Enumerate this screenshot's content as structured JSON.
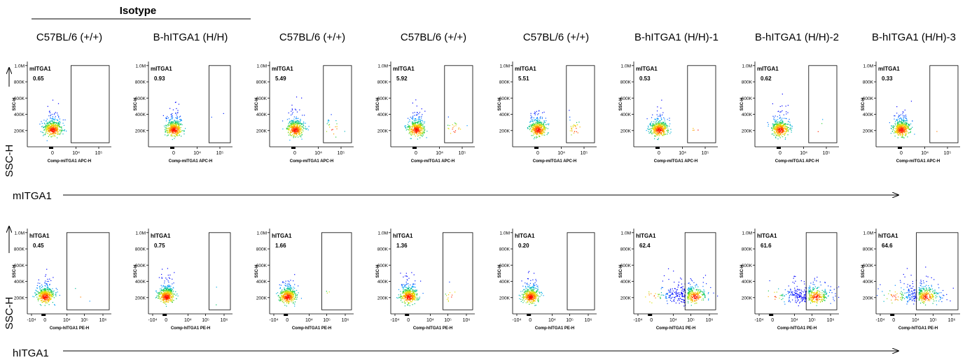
{
  "header": {
    "isotype_label": "Isotype",
    "columns": [
      "C57BL/6 (+/+)",
      "B-hITGA1 (H/H)",
      "C57BL/6 (+/+)",
      "C57BL/6 (+/+)",
      "C57BL/6 (+/+)",
      "B-hITGA1 (H/H)-1",
      "B-hITGA1 (H/H)-2",
      "B-hITGA1 (H/H)-3"
    ]
  },
  "row_axes": {
    "y_label": "SSC-H",
    "mouse_x_label": "mITGA1",
    "human_x_label": "hITGA1"
  },
  "colors": {
    "gate": "#000000",
    "density_low": "#0000ff",
    "density_high": "#ff0000"
  },
  "chart_data": [
    {
      "type": "scatter",
      "row": "mouse",
      "gate_label": "mITGA1",
      "xlabel": "Comp-mITGA1 APC-H",
      "ylabel": "SSC-H",
      "x_scale": "biexponential",
      "x_ticks": [
        "0",
        "10^4",
        "10^5"
      ],
      "y_ticks": [
        "200K",
        "400K",
        "600K",
        "800K",
        "1.0M"
      ],
      "ylim": [
        0,
        1050000
      ],
      "gate_percent": [
        "0.65",
        "0.93",
        "5.49",
        "5.92",
        "5.51",
        "0.53",
        "0.62",
        "0.33"
      ]
    },
    {
      "type": "scatter",
      "row": "human",
      "gate_label": "hITGA1",
      "xlabel": "Comp-hITGA1 PE-H",
      "ylabel": "SSC-H",
      "x_scale": "biexponential",
      "x_ticks": [
        "-10^4",
        "0",
        "10^4",
        "10^5",
        "10^6"
      ],
      "y_ticks": [
        "200K",
        "400K",
        "600K",
        "800K",
        "1.0M"
      ],
      "ylim": [
        0,
        1050000
      ],
      "gate_percent": [
        "0.45",
        "0.75",
        "1.66",
        "1.36",
        "0.20",
        "62.4",
        "61.6",
        "64.6"
      ]
    }
  ]
}
